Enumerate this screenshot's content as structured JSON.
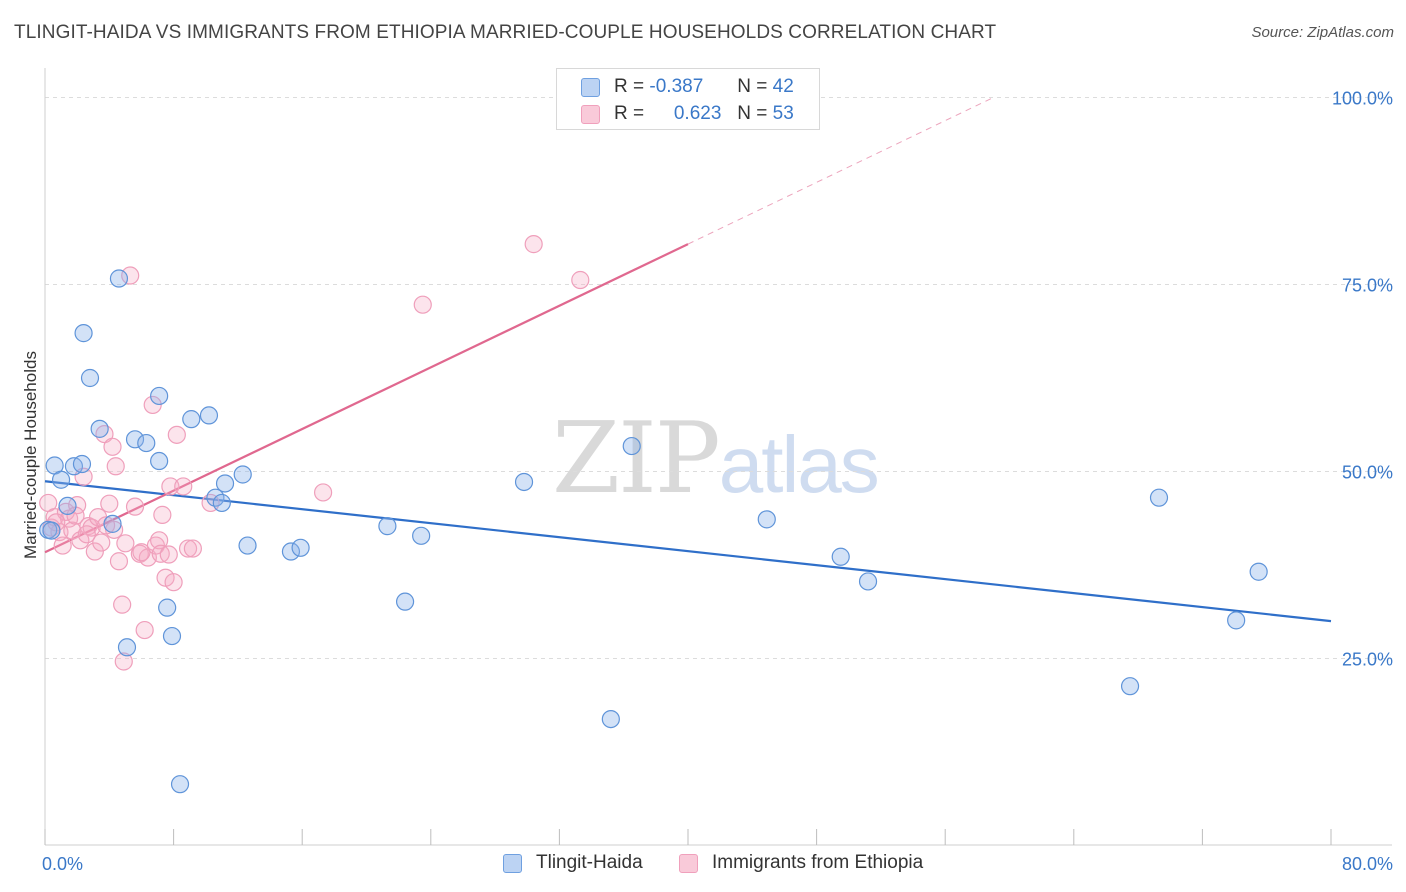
{
  "title": "TLINGIT-HAIDA VS IMMIGRANTS FROM ETHIOPIA MARRIED-COUPLE HOUSEHOLDS CORRELATION CHART",
  "source": "Source: ZipAtlas.com",
  "watermark": {
    "zip": "ZIP",
    "atlas": "atlas"
  },
  "colors": {
    "blue": "#6fa0e0",
    "blue_line": "#2f6fc9",
    "pink": "#f0a0bc",
    "pink_line": "#e0688f",
    "tick_text": "#3a78c8"
  },
  "legend": {
    "rows": [
      {
        "r_label": "R =",
        "r_value": "-0.387",
        "n_label": "N =",
        "n_value": "42"
      },
      {
        "r_label": "R =",
        "r_value": "0.623",
        "n_label": "N =",
        "n_value": "53"
      }
    ]
  },
  "chart_data": {
    "type": "scatter",
    "title": "TLINGIT-HAIDA VS IMMIGRANTS FROM ETHIOPIA MARRIED-COUPLE HOUSEHOLDS CORRELATION CHART",
    "xlabel": "",
    "ylabel": "Married-couple Households",
    "xlim": [
      0,
      80
    ],
    "ylim": [
      0,
      100
    ],
    "x_tick_labels": [
      "0.0%",
      "80.0%"
    ],
    "y_tick_labels": [
      "100.0%",
      "75.0%",
      "50.0%",
      "25.0%"
    ],
    "y_ticks": [
      100,
      75,
      50,
      25
    ],
    "grid": true,
    "series": [
      {
        "name": "Tlingit-Haida",
        "color": "#6fa0e0",
        "points": [
          [
            0.2,
            42.2
          ],
          [
            0.6,
            50.8
          ],
          [
            1.0,
            48.9
          ],
          [
            1.4,
            45.4
          ],
          [
            1.8,
            50.7
          ],
          [
            2.3,
            51.0
          ],
          [
            2.4,
            68.5
          ],
          [
            2.8,
            62.5
          ],
          [
            3.4,
            55.7
          ],
          [
            4.2,
            43.0
          ],
          [
            4.6,
            75.8
          ],
          [
            5.1,
            26.5
          ],
          [
            5.6,
            54.3
          ],
          [
            6.3,
            53.8
          ],
          [
            7.1,
            51.4
          ],
          [
            7.1,
            60.1
          ],
          [
            7.6,
            31.8
          ],
          [
            7.9,
            28.0
          ],
          [
            8.4,
            8.2
          ],
          [
            9.1,
            57.0
          ],
          [
            10.2,
            57.5
          ],
          [
            10.6,
            46.5
          ],
          [
            11.2,
            48.4
          ],
          [
            11.0,
            45.8
          ],
          [
            12.3,
            49.6
          ],
          [
            12.6,
            40.1
          ],
          [
            15.3,
            39.3
          ],
          [
            15.9,
            39.8
          ],
          [
            21.3,
            42.7
          ],
          [
            22.4,
            32.6
          ],
          [
            23.4,
            41.4
          ],
          [
            29.8,
            48.6
          ],
          [
            35.2,
            16.9
          ],
          [
            36.5,
            53.4
          ],
          [
            44.9,
            43.6
          ],
          [
            49.5,
            38.6
          ],
          [
            51.2,
            35.3
          ],
          [
            67.5,
            21.3
          ],
          [
            69.3,
            46.5
          ],
          [
            74.1,
            30.1
          ],
          [
            75.5,
            36.6
          ],
          [
            0.4,
            42.1
          ]
        ]
      },
      {
        "name": "Immigrants from Ethiopia",
        "color": "#f0a0bc",
        "points": [
          [
            0.2,
            45.8
          ],
          [
            0.4,
            42.5
          ],
          [
            0.6,
            43.9
          ],
          [
            0.9,
            41.9
          ],
          [
            1.1,
            40.1
          ],
          [
            1.3,
            44.6
          ],
          [
            1.5,
            43.7
          ],
          [
            1.7,
            42.1
          ],
          [
            2.0,
            45.5
          ],
          [
            2.2,
            40.8
          ],
          [
            2.4,
            49.3
          ],
          [
            2.7,
            42.7
          ],
          [
            2.9,
            42.5
          ],
          [
            3.1,
            39.3
          ],
          [
            3.3,
            43.9
          ],
          [
            3.5,
            40.5
          ],
          [
            3.7,
            55.0
          ],
          [
            4.0,
            45.7
          ],
          [
            4.2,
            53.3
          ],
          [
            4.4,
            50.7
          ],
          [
            4.6,
            38.0
          ],
          [
            4.8,
            32.2
          ],
          [
            5.0,
            40.4
          ],
          [
            5.3,
            76.2
          ],
          [
            5.6,
            45.3
          ],
          [
            5.9,
            39.0
          ],
          [
            6.2,
            28.8
          ],
          [
            6.4,
            38.5
          ],
          [
            6.7,
            58.9
          ],
          [
            6.9,
            40.1
          ],
          [
            7.1,
            40.8
          ],
          [
            7.3,
            44.2
          ],
          [
            7.5,
            35.8
          ],
          [
            7.8,
            48.0
          ],
          [
            8.0,
            35.2
          ],
          [
            8.2,
            54.9
          ],
          [
            8.6,
            48.0
          ],
          [
            8.9,
            39.7
          ],
          [
            7.2,
            39.0
          ],
          [
            4.9,
            24.6
          ],
          [
            10.3,
            45.8
          ],
          [
            17.3,
            47.2
          ],
          [
            23.5,
            72.3
          ],
          [
            30.4,
            80.4
          ],
          [
            33.3,
            75.6
          ],
          [
            1.9,
            44.1
          ],
          [
            2.6,
            41.6
          ],
          [
            4.3,
            42.2
          ],
          [
            6.0,
            39.2
          ],
          [
            7.7,
            38.9
          ],
          [
            9.2,
            39.7
          ],
          [
            3.8,
            42.8
          ],
          [
            0.7,
            43.2
          ]
        ]
      }
    ],
    "trend_lines": [
      {
        "series": "Tlingit-Haida",
        "x": [
          0,
          80
        ],
        "y": [
          48.7,
          30.0
        ],
        "style": "solid"
      },
      {
        "series": "Immigrants from Ethiopia",
        "x": [
          0,
          40
        ],
        "y": [
          39.2,
          80.4
        ],
        "style": "solid"
      },
      {
        "series": "Immigrants from Ethiopia",
        "x": [
          40,
          59
        ],
        "y": [
          80.4,
          100.0
        ],
        "style": "dashed"
      }
    ],
    "legend": [
      "Tlingit-Haida",
      "Immigrants from Ethiopia"
    ]
  }
}
